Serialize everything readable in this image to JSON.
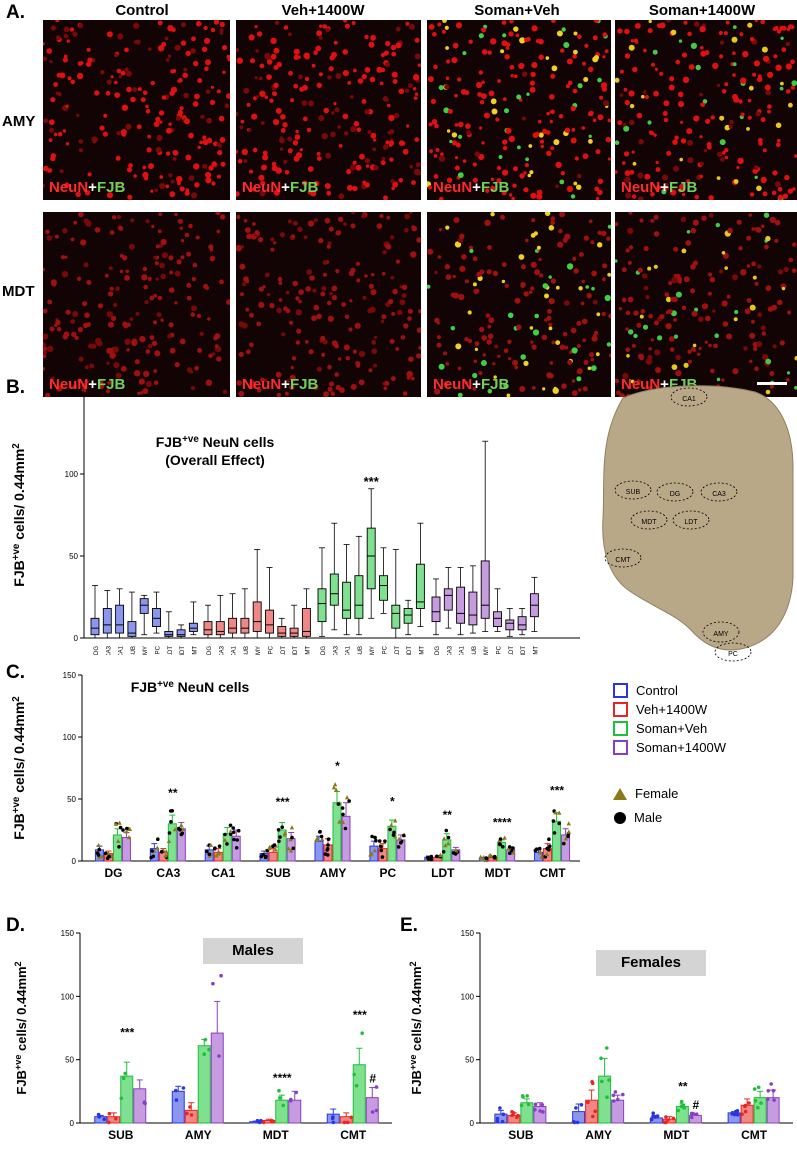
{
  "panel_a": {
    "letter": "A.",
    "columns": [
      "Control",
      "Veh+1400W",
      "Soman+Veh",
      "Soman+1400W"
    ],
    "rows": [
      "AMY",
      "MDT"
    ],
    "stain": {
      "neun": "NeuN",
      "plus": "+",
      "fjb": "FJB"
    }
  },
  "panel_b": {
    "letter": "B."
  },
  "panel_c": {
    "letter": "C."
  },
  "panel_d": {
    "letter": "D."
  },
  "panel_e": {
    "letter": "E."
  },
  "atlas": {
    "labels": [
      "CA1",
      "SUB",
      "DG",
      "CA3",
      "MDT",
      "LDT",
      "CMT",
      "AMY",
      "PC"
    ]
  },
  "legend": {
    "groups": [
      {
        "name": "Control",
        "color": "#2a35e0"
      },
      {
        "name": "Veh+1400W",
        "color": "#e8261e"
      },
      {
        "name": "Soman+Veh",
        "color": "#1fbf3a"
      },
      {
        "name": "Soman+1400W",
        "color": "#8a3fc2"
      }
    ],
    "sex": [
      {
        "name": "Female",
        "symbol": "triangle",
        "color": "#8a7a1a"
      },
      {
        "name": "Male",
        "symbol": "circle",
        "color": "#000000"
      }
    ]
  },
  "chart_data": [
    {
      "type": "box",
      "panel": "B",
      "title": "FJB+ve NeuN cells",
      "subtitle": "(Overall Effect)",
      "ylabel": "FJB+ve cells/ 0.44mm2",
      "ylim": [
        0,
        150
      ],
      "yticks": [
        0,
        50,
        100,
        150
      ],
      "regions": [
        "DG",
        "CA3",
        "CA1",
        "SUB",
        "AMY",
        "PC",
        "LDT",
        "MDT",
        "CMT"
      ],
      "annotation": {
        "text": "***",
        "group": 2,
        "region": 4
      },
      "groups": [
        {
          "name": "Control",
          "boxes": [
            [
              0,
              2,
              6,
              12,
              32
            ],
            [
              0,
              3,
              8,
              18,
              29
            ],
            [
              0,
              3,
              8,
              20,
              30
            ],
            [
              0,
              1,
              3,
              10,
              28
            ],
            [
              2,
              15,
              20,
              24,
              26
            ],
            [
              3,
              7,
              12,
              18,
              28
            ],
            [
              0,
              1,
              2,
              4,
              16
            ],
            [
              0,
              1,
              2,
              5,
              8
            ],
            [
              2,
              4,
              6,
              9,
              22
            ]
          ]
        },
        {
          "name": "Veh+1400W",
          "boxes": [
            [
              0,
              2,
              5,
              10,
              20
            ],
            [
              0,
              2,
              4,
              10,
              26
            ],
            [
              0,
              3,
              6,
              12,
              27
            ],
            [
              0,
              3,
              6,
              12,
              30
            ],
            [
              0,
              4,
              10,
              22,
              54
            ],
            [
              0,
              3,
              8,
              17,
              43
            ],
            [
              0,
              1,
              3,
              7,
              12
            ],
            [
              0,
              1,
              3,
              6,
              20
            ],
            [
              0,
              1,
              4,
              18,
              30
            ]
          ]
        },
        {
          "name": "Soman+Veh",
          "boxes": [
            [
              1,
              10,
              21,
              30,
              55
            ],
            [
              5,
              20,
              27,
              39,
              70
            ],
            [
              2,
              12,
              17,
              34,
              57
            ],
            [
              2,
              12,
              20,
              38,
              62
            ],
            [
              12,
              30,
              50,
              67,
              91
            ],
            [
              15,
              23,
              32,
              38,
              55
            ],
            [
              0,
              6,
              15,
              20,
              54
            ],
            [
              2,
              9,
              14,
              18,
              23
            ],
            [
              7,
              18,
              22,
              45,
              70
            ]
          ]
        },
        {
          "name": "Soman+1400W",
          "boxes": [
            [
              2,
              10,
              16,
              25,
              36
            ],
            [
              6,
              17,
              26,
              30,
              43
            ],
            [
              2,
              9,
              15,
              31,
              43
            ],
            [
              3,
              8,
              14,
              28,
              44
            ],
            [
              4,
              12,
              20,
              47,
              120
            ],
            [
              4,
              7,
              12,
              16,
              30
            ],
            [
              1,
              5,
              9,
              11,
              18
            ],
            [
              2,
              5,
              8,
              13,
              18
            ],
            [
              4,
              13,
              20,
              27,
              37
            ]
          ]
        }
      ]
    },
    {
      "type": "bar",
      "panel": "C",
      "title": "FJB+ve NeuN cells",
      "ylabel": "FJB+ve cells/ 0.44mm2",
      "ylim": [
        0,
        150
      ],
      "yticks": [
        0,
        50,
        100,
        150
      ],
      "categories": [
        "DG",
        "CA3",
        "CA1",
        "SUB",
        "AMY",
        "PC",
        "LDT",
        "MDT",
        "CMT"
      ],
      "annotations": [
        {
          "region": "CA3",
          "text": "**"
        },
        {
          "region": "SUB",
          "text": "***"
        },
        {
          "region": "AMY",
          "text": "*"
        },
        {
          "region": "PC",
          "text": "*"
        },
        {
          "region": "LDT",
          "text": "**"
        },
        {
          "region": "MDT",
          "text": "****"
        },
        {
          "region": "CMT",
          "text": "***"
        }
      ],
      "series": [
        {
          "name": "Control",
          "values": [
            9,
            10,
            9,
            6,
            16,
            12,
            3,
            2,
            7
          ],
          "errors": [
            3,
            4,
            3,
            2,
            4,
            4,
            1,
            1,
            2
          ]
        },
        {
          "name": "Veh+1400W",
          "values": [
            6,
            7,
            7,
            7,
            13,
            10,
            3,
            3,
            10
          ],
          "errors": [
            2,
            3,
            3,
            3,
            5,
            4,
            1,
            1,
            4
          ]
        },
        {
          "name": "Soman+Veh",
          "values": [
            21,
            30,
            22,
            25,
            47,
            28,
            17,
            15,
            32
          ],
          "errors": [
            5,
            7,
            5,
            6,
            9,
            5,
            5,
            2,
            7
          ]
        },
        {
          "name": "Soman+1400W",
          "values": [
            19,
            26,
            20,
            18,
            36,
            17,
            9,
            9,
            21
          ],
          "errors": [
            4,
            5,
            5,
            5,
            11,
            4,
            2,
            2,
            5
          ]
        }
      ]
    },
    {
      "type": "bar",
      "panel": "D",
      "title": "Males",
      "ylabel": "FJB+ve cells/ 0.44mm2",
      "ylim": [
        0,
        150
      ],
      "yticks": [
        0,
        50,
        100,
        150
      ],
      "categories": [
        "SUB",
        "AMY",
        "MDT",
        "CMT"
      ],
      "annotations": [
        {
          "region": "SUB",
          "text": "***"
        },
        {
          "region": "MDT",
          "text": "****"
        },
        {
          "region": "CMT",
          "text": "***"
        },
        {
          "region": "CMT",
          "text": "#"
        }
      ],
      "series": [
        {
          "name": "Control",
          "values": [
            5,
            25,
            1,
            7
          ],
          "errors": [
            1,
            4,
            0.5,
            4
          ]
        },
        {
          "name": "Veh+1400W",
          "values": [
            5,
            10,
            2,
            5
          ],
          "errors": [
            3,
            6,
            1,
            3
          ]
        },
        {
          "name": "Soman+Veh",
          "values": [
            37,
            61,
            18,
            46
          ],
          "errors": [
            11,
            5,
            4,
            13
          ]
        },
        {
          "name": "Soman+1400W",
          "values": [
            27,
            71,
            18,
            20
          ],
          "errors": [
            7,
            25,
            7,
            8
          ]
        }
      ]
    },
    {
      "type": "bar",
      "panel": "E",
      "title": "Females",
      "ylabel": "FJB+ve cells/ 0.44mm2",
      "ylim": [
        0,
        150
      ],
      "yticks": [
        0,
        50,
        100,
        150
      ],
      "categories": [
        "SUB",
        "AMY",
        "MDT",
        "CMT"
      ],
      "annotations": [
        {
          "region": "MDT",
          "text": "**"
        },
        {
          "region": "MDT",
          "text": "#"
        }
      ],
      "series": [
        {
          "name": "Control",
          "values": [
            7,
            9,
            4,
            8
          ],
          "errors": [
            3,
            6,
            2,
            1
          ]
        },
        {
          "name": "Veh+1400W",
          "values": [
            6,
            18,
            3,
            14
          ],
          "errors": [
            2,
            8,
            2,
            5
          ]
        },
        {
          "name": "Soman+Veh",
          "values": [
            16,
            37,
            13,
            20
          ],
          "errors": [
            3,
            14,
            2,
            5
          ]
        },
        {
          "name": "Soman+1400W",
          "values": [
            13,
            18,
            6,
            20
          ],
          "errors": [
            3,
            4,
            1,
            6
          ]
        }
      ]
    }
  ]
}
